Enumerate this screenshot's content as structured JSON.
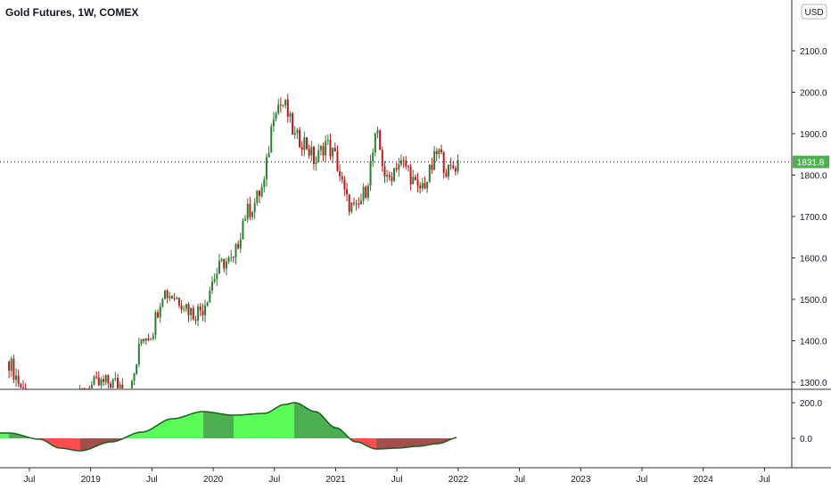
{
  "header": {
    "title": "Gold Futures, 1W, COMEX",
    "currency": "USD",
    "last_price": "1831.8"
  },
  "colors": {
    "bull": "#26a69a",
    "bear": "#ef5350",
    "candle_up": "#2e7d32",
    "candle_down": "#b71c1c",
    "osc_green_bright": "#5afc5a",
    "osc_green_dark": "#4caf50",
    "osc_red_bright": "#ff4d4d",
    "osc_red_dark": "#a34d4d",
    "price_badge": "#4caf50"
  },
  "chart_data": [
    {
      "type": "line",
      "title": "Gold Futures, 1W, COMEX",
      "ylabel": "USD",
      "ylim": [
        1280,
        2190
      ],
      "y_ticks": [
        "1300.0",
        "1400.0",
        "1500.0",
        "1600.0",
        "1700.0",
        "1800.0",
        "1900.0",
        "2000.0",
        "2100.0"
      ],
      "x_ticks": [
        "Jul",
        "2019",
        "Jul",
        "2020",
        "Jul",
        "2021",
        "Jul",
        "2022",
        "Jul",
        "2023",
        "Jul",
        "2024",
        "Jul"
      ],
      "last": 1831.8,
      "series": [
        {
          "x": [
            "2018-05",
            "2018-07",
            "2018-09",
            "2018-11",
            "2019-01",
            "2019-03",
            "2019-05",
            "2019-06",
            "2019-07",
            "2019-08",
            "2019-09",
            "2019-10",
            "2019-11",
            "2019-12",
            "2020-01",
            "2020-02",
            "2020-03",
            "2020-04",
            "2020-05",
            "2020-06",
            "2020-07",
            "2020-08",
            "2020-09",
            "2020-10",
            "2020-11",
            "2020-12",
            "2021-01",
            "2021-02",
            "2021-03",
            "2021-04",
            "2021-05",
            "2021-06",
            "2021-07",
            "2021-08",
            "2021-09",
            "2021-10",
            "2021-11",
            "2021-12",
            "2022-01"
          ],
          "values": [
            1350,
            1245,
            1200,
            1225,
            1290,
            1300,
            1285,
            1410,
            1420,
            1520,
            1510,
            1495,
            1465,
            1480,
            1550,
            1590,
            1590,
            1700,
            1730,
            1780,
            1970,
            1970,
            1890,
            1880,
            1830,
            1880,
            1840,
            1740,
            1710,
            1770,
            1900,
            1780,
            1830,
            1820,
            1760,
            1790,
            1860,
            1805,
            1831.8
          ]
        }
      ]
    },
    {
      "type": "area",
      "y_ticks": [
        "200.0",
        "0.0"
      ],
      "series": [
        {
          "x": [
            "2018-05",
            "2018-08",
            "2018-10",
            "2018-12",
            "2019-03",
            "2019-06",
            "2019-09",
            "2019-12",
            "2020-03",
            "2020-06",
            "2020-08",
            "2020-09",
            "2020-11",
            "2021-01",
            "2021-03",
            "2021-05",
            "2021-07",
            "2021-09",
            "2021-11",
            "2022-01"
          ],
          "values": [
            30,
            -5,
            -55,
            -70,
            -20,
            35,
            110,
            150,
            130,
            140,
            190,
            200,
            150,
            60,
            -20,
            -60,
            -55,
            -45,
            -30,
            5
          ]
        }
      ]
    }
  ]
}
